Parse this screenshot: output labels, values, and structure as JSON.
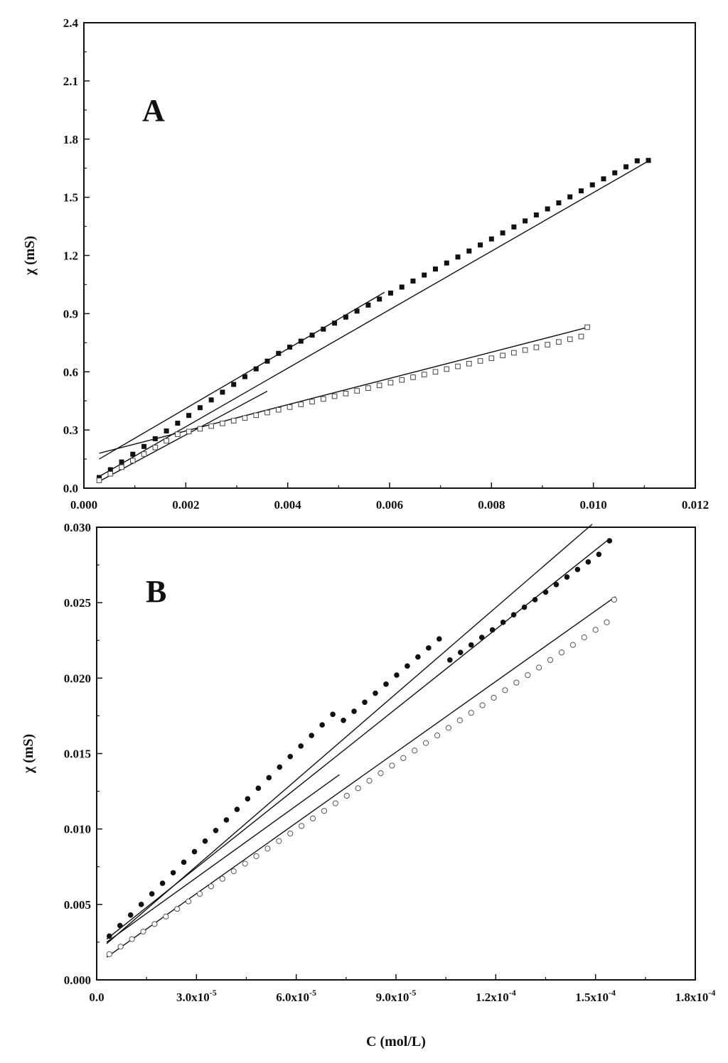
{
  "chart_data": [
    {
      "type": "scatter",
      "panel_label": "A",
      "title": "",
      "xlabel": "",
      "ylabel": "χ (mS)",
      "xlim": [
        0,
        0.012
      ],
      "ylim": [
        0,
        2.4
      ],
      "x_ticks": [
        0.0,
        0.002,
        0.004,
        0.006,
        0.008,
        0.01,
        0.012
      ],
      "x_tick_labels": [
        "0.000",
        "0.002",
        "0.004",
        "0.006",
        "0.008",
        "0.010",
        "0.012"
      ],
      "y_ticks": [
        0,
        0.3,
        0.6,
        0.9,
        1.2,
        1.5,
        1.8,
        2.1,
        2.4
      ],
      "y_tick_labels": [
        "0.0",
        "0.3",
        "0.6",
        "0.9",
        "1.2",
        "1.5",
        "1.8",
        "2.1",
        "2.4"
      ],
      "grid": false,
      "series": [
        {
          "marker": "filled-square",
          "x": [
            0.0003,
            0.00052,
            0.00074,
            0.00096,
            0.00118,
            0.0014,
            0.00162,
            0.00184,
            0.00206,
            0.00228,
            0.0025,
            0.00272,
            0.00294,
            0.00316,
            0.00338,
            0.0036,
            0.00382,
            0.00404,
            0.00426,
            0.00448,
            0.0047,
            0.00492,
            0.00514,
            0.00536,
            0.00558,
            0.0058,
            0.00602,
            0.00624,
            0.00646,
            0.00668,
            0.0069,
            0.00712,
            0.00734,
            0.00756,
            0.00778,
            0.008,
            0.00822,
            0.00844,
            0.00866,
            0.00888,
            0.0091,
            0.00932,
            0.00954,
            0.00976,
            0.00998,
            0.0102,
            0.01042,
            0.01064,
            0.01086,
            0.01108
          ],
          "y": [
            0.055,
            0.095,
            0.135,
            0.175,
            0.215,
            0.255,
            0.295,
            0.335,
            0.375,
            0.415,
            0.455,
            0.495,
            0.535,
            0.575,
            0.615,
            0.655,
            0.695,
            0.727,
            0.758,
            0.789,
            0.82,
            0.851,
            0.882,
            0.913,
            0.944,
            0.975,
            1.006,
            1.037,
            1.068,
            1.099,
            1.13,
            1.161,
            1.192,
            1.223,
            1.254,
            1.285,
            1.316,
            1.347,
            1.378,
            1.409,
            1.44,
            1.471,
            1.502,
            1.533,
            1.564,
            1.595,
            1.626,
            1.657,
            1.688,
            1.69
          ]
        },
        {
          "marker": "open-square",
          "x": [
            0.0003,
            0.00052,
            0.00074,
            0.00096,
            0.00118,
            0.0014,
            0.00162,
            0.00184,
            0.00206,
            0.00228,
            0.0025,
            0.00272,
            0.00294,
            0.00316,
            0.00338,
            0.0036,
            0.00382,
            0.00404,
            0.00426,
            0.00448,
            0.0047,
            0.00492,
            0.00514,
            0.00536,
            0.00558,
            0.0058,
            0.00602,
            0.00624,
            0.00646,
            0.00668,
            0.0069,
            0.00712,
            0.00734,
            0.00756,
            0.00778,
            0.008,
            0.00822,
            0.00844,
            0.00866,
            0.00888,
            0.0091,
            0.00932,
            0.00954,
            0.00976,
            0.00988
          ],
          "y": [
            0.04,
            0.074,
            0.108,
            0.142,
            0.176,
            0.21,
            0.244,
            0.278,
            0.292,
            0.306,
            0.32,
            0.334,
            0.348,
            0.362,
            0.376,
            0.39,
            0.404,
            0.418,
            0.432,
            0.446,
            0.46,
            0.474,
            0.488,
            0.502,
            0.516,
            0.53,
            0.544,
            0.558,
            0.572,
            0.586,
            0.6,
            0.614,
            0.628,
            0.642,
            0.656,
            0.67,
            0.684,
            0.698,
            0.712,
            0.726,
            0.74,
            0.754,
            0.768,
            0.782,
            0.83
          ]
        }
      ],
      "fit_lines": [
        {
          "x": [
            0.0003,
            0.0059
          ],
          "y": [
            0.15,
            1.01
          ]
        },
        {
          "x": [
            0.0003,
            0.0111
          ],
          "y": [
            0.06,
            1.69
          ]
        },
        {
          "x": [
            0.0003,
            0.0036
          ],
          "y": [
            0.035,
            0.5
          ]
        },
        {
          "x": [
            0.0003,
            0.0099
          ],
          "y": [
            0.18,
            0.83
          ]
        }
      ]
    },
    {
      "type": "scatter",
      "panel_label": "B",
      "title": "",
      "xlabel": "C (mol/L)",
      "ylabel": "χ (mS)",
      "xlim": [
        0,
        0.00018
      ],
      "ylim": [
        0,
        0.03
      ],
      "x_ticks": [
        0,
        3e-05,
        6e-05,
        9e-05,
        0.00012,
        0.00015,
        0.00018
      ],
      "x_tick_labels": [
        {
          "mantissa": "0.0",
          "exp": ""
        },
        {
          "mantissa": "3.0x10",
          "exp": "-5"
        },
        {
          "mantissa": "6.0x10",
          "exp": "-5"
        },
        {
          "mantissa": "9.0x10",
          "exp": "-5"
        },
        {
          "mantissa": "1.2x10",
          "exp": "-4"
        },
        {
          "mantissa": "1.5x10",
          "exp": "-4"
        },
        {
          "mantissa": "1.8x10",
          "exp": "-4"
        }
      ],
      "y_ticks": [
        0,
        0.005,
        0.01,
        0.015,
        0.02,
        0.025,
        0.03
      ],
      "y_tick_labels": [
        "0.000",
        "0.005",
        "0.010",
        "0.015",
        "0.020",
        "0.025",
        "0.030"
      ],
      "grid": false,
      "series": [
        {
          "marker": "filled-circle",
          "x": [
            3.8e-06,
            7e-06,
            1.02e-05,
            1.34e-05,
            1.66e-05,
            1.98e-05,
            2.3e-05,
            2.62e-05,
            2.94e-05,
            3.26e-05,
            3.58e-05,
            3.9e-05,
            4.22e-05,
            4.54e-05,
            4.86e-05,
            5.18e-05,
            5.5e-05,
            5.82e-05,
            6.14e-05,
            6.46e-05,
            6.78e-05,
            7.1e-05,
            7.42e-05,
            7.74e-05,
            8.06e-05,
            8.38e-05,
            8.7e-05,
            9.02e-05,
            9.34e-05,
            9.66e-05,
            9.98e-05,
            0.000103,
            0.0001062,
            0.0001094,
            0.0001126,
            0.0001158,
            0.000119,
            0.0001222,
            0.0001254,
            0.0001286,
            0.0001318,
            0.000135,
            0.0001382,
            0.0001414,
            0.0001446,
            0.0001478,
            0.000151,
            0.0001542
          ],
          "y": [
            0.0029,
            0.0036,
            0.0043,
            0.005,
            0.0057,
            0.0064,
            0.0071,
            0.0078,
            0.0085,
            0.0092,
            0.0099,
            0.0106,
            0.0113,
            0.012,
            0.0127,
            0.0134,
            0.0141,
            0.0148,
            0.0155,
            0.0162,
            0.0169,
            0.0176,
            0.0172,
            0.0178,
            0.0184,
            0.019,
            0.0196,
            0.0202,
            0.0208,
            0.0214,
            0.022,
            0.0226,
            0.0212,
            0.0217,
            0.0222,
            0.0227,
            0.0232,
            0.0237,
            0.0242,
            0.0247,
            0.0252,
            0.0257,
            0.0262,
            0.0267,
            0.0272,
            0.0277,
            0.0282,
            0.0291
          ]
        },
        {
          "marker": "open-circle",
          "x": [
            3.8e-06,
            7.2e-06,
            1.06e-05,
            1.4e-05,
            1.74e-05,
            2.08e-05,
            2.42e-05,
            2.76e-05,
            3.1e-05,
            3.44e-05,
            3.78e-05,
            4.12e-05,
            4.46e-05,
            4.8e-05,
            5.14e-05,
            5.48e-05,
            5.82e-05,
            6.16e-05,
            6.5e-05,
            6.84e-05,
            7.18e-05,
            7.52e-05,
            7.86e-05,
            8.2e-05,
            8.54e-05,
            8.88e-05,
            9.22e-05,
            9.56e-05,
            9.9e-05,
            0.0001024,
            0.0001058,
            0.0001092,
            0.0001126,
            0.000116,
            0.0001194,
            0.0001228,
            0.0001262,
            0.0001296,
            0.000133,
            0.0001364,
            0.0001398,
            0.0001432,
            0.0001466,
            0.00015,
            0.0001534,
            0.0001556
          ],
          "y": [
            0.0017,
            0.0022,
            0.0027,
            0.0032,
            0.0037,
            0.0042,
            0.0047,
            0.0052,
            0.0057,
            0.0062,
            0.0067,
            0.0072,
            0.0077,
            0.0082,
            0.0087,
            0.0092,
            0.0097,
            0.0102,
            0.0107,
            0.0112,
            0.0117,
            0.0122,
            0.0127,
            0.0132,
            0.0137,
            0.0142,
            0.0147,
            0.0152,
            0.0157,
            0.0162,
            0.0167,
            0.0172,
            0.0177,
            0.0182,
            0.0187,
            0.0192,
            0.0197,
            0.0202,
            0.0207,
            0.0212,
            0.0217,
            0.0222,
            0.0227,
            0.0232,
            0.0237,
            0.0252
          ]
        }
      ],
      "fit_lines": [
        {
          "x": [
            3e-06,
            0.000149
          ],
          "y": [
            0.0024,
            0.0302
          ]
        },
        {
          "x": [
            3e-06,
            0.000154
          ],
          "y": [
            0.0027,
            0.0292
          ]
        },
        {
          "x": [
            3e-06,
            7.3e-05
          ],
          "y": [
            0.0025,
            0.0136
          ]
        },
        {
          "x": [
            3e-06,
            0.000156
          ],
          "y": [
            0.0015,
            0.0254
          ]
        }
      ]
    }
  ]
}
